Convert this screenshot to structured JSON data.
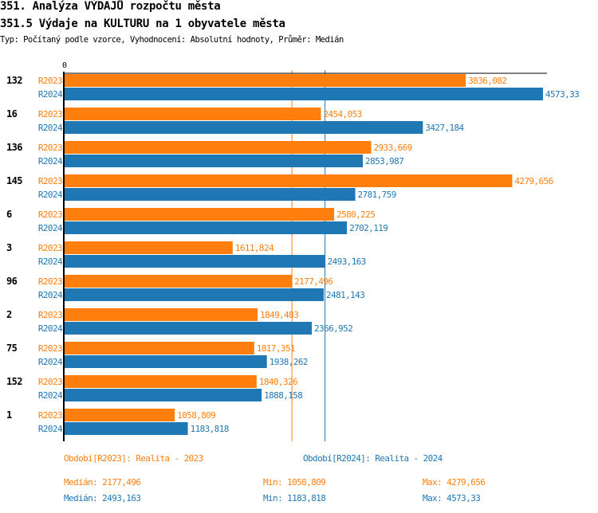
{
  "header": {
    "title": "351. Analýza VÝDAJŮ rozpočtu města",
    "subtitle": "351.5 Výdaje na KULTURU na 1 obyvatele města",
    "info": "Typ: Počítaný podle vzorce, Vyhodnocení: Absolutní hodnoty, Průměr: Medián"
  },
  "chart_data": {
    "type": "bar",
    "orientation": "horizontal",
    "axis_zero_label": "0",
    "categories": [
      "132",
      "16",
      "136",
      "145",
      "6",
      "3",
      "96",
      "2",
      "75",
      "152",
      "1"
    ],
    "series": [
      {
        "name": "R2023",
        "color": "#ff7f0e",
        "values": [
          3836.082,
          2454.053,
          2933.669,
          4279.656,
          2580.225,
          1611.824,
          2177.496,
          1849.483,
          1817.351,
          1840.326,
          1058.809
        ],
        "labels": [
          "3836,082",
          "2454,053",
          "2933,669",
          "4279,656",
          "2580,225",
          "1611,824",
          "2177,496",
          "1849,483",
          "1817,351",
          "1840,326",
          "1058,809"
        ]
      },
      {
        "name": "R2024",
        "color": "#1f77b4",
        "values": [
          4573.33,
          3427.184,
          2853.987,
          2781.759,
          2702.119,
          2493.163,
          2481.143,
          2366.952,
          1938.262,
          1888.158,
          1183.818
        ],
        "labels": [
          "4573,33",
          "3427,184",
          "2853,987",
          "2781,759",
          "2702,119",
          "2493,163",
          "2481,143",
          "2366,952",
          "1938,262",
          "1888,158",
          "1183,818"
        ]
      }
    ],
    "median_lines": [
      2177.496,
      2493.163
    ]
  },
  "legend": {
    "r2023": "Období[R2023]: Realita - 2023",
    "r2024": "Období[R2024]: Realita - 2024"
  },
  "stats": {
    "r2023": {
      "median": "Medián: 2177,496",
      "min": "Min: 1058,809",
      "max": "Max: 4279,656"
    },
    "r2024": {
      "median": "Medián: 2493,163",
      "min": "Min: 1183,818",
      "max": "Max: 4573,33"
    }
  }
}
